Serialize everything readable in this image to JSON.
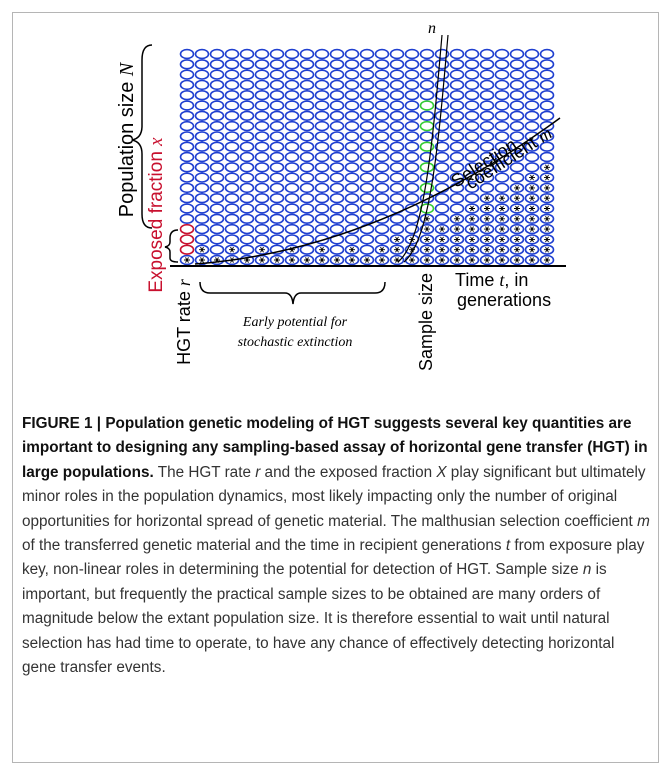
{
  "figure": {
    "n_label": "n",
    "population_size": {
      "text": "Population size ",
      "symbol": "N"
    },
    "exposed_fraction": {
      "text": "Exposed fraction ",
      "symbol": "x"
    },
    "hgt_rate": {
      "text": "HGT rate ",
      "symbol": "r"
    },
    "selection": {
      "line1": "Selection",
      "line2": "coefficient ",
      "symbol": "m"
    },
    "time": {
      "text": "Time ",
      "symbol": "t",
      "rest": ", in",
      "line2": "generations"
    },
    "sample_size": "Sample size",
    "early": {
      "line1": "Early potential for",
      "line2": "stochastic extinction"
    }
  },
  "caption": {
    "title": "FIGURE 1 | Population genetic modeling of HGT suggests several key quantities are important to designing any sampling-based assay of horizontal gene transfer (HGT) in large populations.",
    "body": [
      "The HGT rate ",
      "r",
      " and the exposed fraction ",
      "X",
      " play significant but ultimately minor roles in the population dynamics, most likely impacting only the number of original opportunities for horizontal spread of genetic material. The malthusian selection coefficient ",
      "m",
      " of the transferred genetic material and the time in recipient generations ",
      "t",
      " from exposure play key, non-linear roles in determining the potential for detection of HGT. Sample size ",
      "n",
      " is important, but frequently the practical sample sizes to be obtained are many orders of magnitude below the extant population size. It is therefore essential to wait until natural selection has had time to operate, to have any chance of effectively detecting horizontal gene transfer events."
    ]
  }
}
